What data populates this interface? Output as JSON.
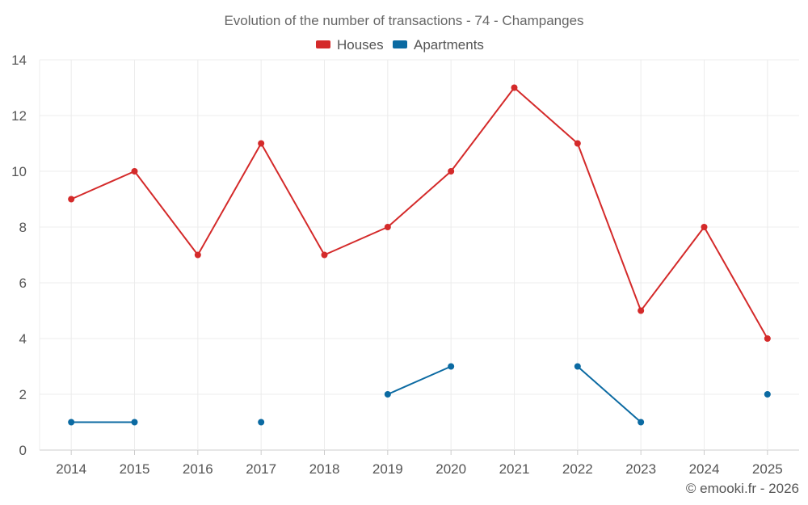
{
  "chart_data": {
    "type": "line",
    "title": "Evolution of the number of transactions - 74 - Champanges",
    "categories": [
      "2014",
      "2015",
      "2016",
      "2017",
      "2018",
      "2019",
      "2020",
      "2021",
      "2022",
      "2023",
      "2024",
      "2025"
    ],
    "series": [
      {
        "name": "Houses",
        "color": "#d42a2a",
        "values": [
          9,
          10,
          7,
          11,
          7,
          8,
          10,
          13,
          11,
          5,
          8,
          4
        ]
      },
      {
        "name": "Apartments",
        "color": "#0b6aa2",
        "values": [
          1,
          1,
          null,
          1,
          null,
          2,
          3,
          null,
          3,
          1,
          null,
          2
        ]
      }
    ],
    "ylim": [
      0,
      14
    ],
    "yticks": [
      "0",
      "2",
      "4",
      "6",
      "8",
      "10",
      "12",
      "14"
    ],
    "xlabel": "",
    "ylabel": "",
    "grid": true,
    "legend": "top-center"
  },
  "credit": "© emooki.fr - 2026"
}
